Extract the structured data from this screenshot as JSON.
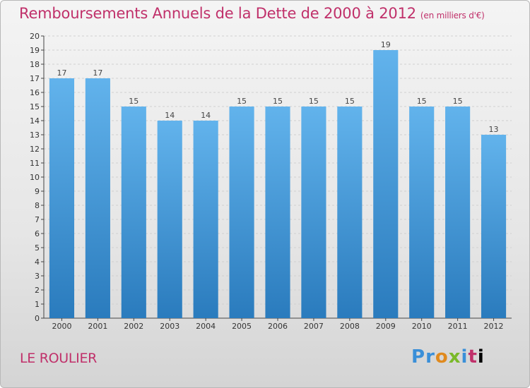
{
  "header": {
    "title": "Remboursements Annuels de la Dette de 2000 à 2012",
    "subtitle": "(en milliers d'€)"
  },
  "footer": {
    "location": "LE ROULIER",
    "logo_letters": [
      "P",
      "r",
      "o",
      "x",
      "i",
      "t",
      "i"
    ]
  },
  "colors": {
    "accent": "#c0306a",
    "bar_top": "#62b3ec",
    "bar_bottom": "#2a7bbd"
  },
  "chart_data": {
    "type": "bar",
    "title": "Remboursements Annuels de la Dette de 2000 à 2012",
    "xlabel": "",
    "ylabel": "",
    "categories": [
      "2000",
      "2001",
      "2002",
      "2003",
      "2004",
      "2005",
      "2006",
      "2007",
      "2008",
      "2009",
      "2010",
      "2011",
      "2012"
    ],
    "values": [
      17,
      17,
      15,
      14,
      14,
      15,
      15,
      15,
      15,
      19,
      15,
      15,
      13
    ],
    "ylim": [
      0,
      20
    ],
    "yticks": [
      "0",
      "1",
      "2",
      "3",
      "4",
      "5",
      "6",
      "7",
      "8",
      "9",
      "10",
      "11",
      "12",
      "13",
      "14",
      "15",
      "16",
      "17",
      "18",
      "19",
      "20"
    ],
    "grid": true,
    "legend": "none"
  }
}
